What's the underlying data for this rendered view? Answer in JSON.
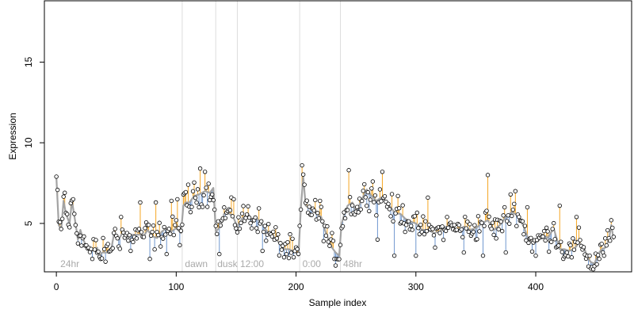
{
  "chart_data": {
    "type": "scatter",
    "xlabel": "Sample index",
    "ylabel": "Expression",
    "xlim": [
      -10,
      480
    ],
    "ylim": [
      2.0,
      18.8
    ],
    "xticks": [
      0,
      100,
      200,
      300,
      400
    ],
    "yticks": [
      5,
      10,
      15
    ],
    "grid": false,
    "legend": "none",
    "colors": {
      "above_fit": "#f5a623",
      "below_fit": "#6f97cf",
      "fit": "#a3a3a3",
      "divider": "#dddddd",
      "segment_label": "#aaaaaa"
    },
    "segments": [
      {
        "label": "24hr",
        "x": 2
      },
      {
        "label": "dawn",
        "x": 106
      },
      {
        "label": "dusk",
        "x": 133
      },
      {
        "label": "12:00",
        "x": 152
      },
      {
        "label": "0:00",
        "x": 204
      },
      {
        "label": "48hr",
        "x": 238
      }
    ],
    "dividers": [
      105,
      133,
      151,
      203,
      237
    ],
    "anchors": [
      [
        0,
        7.9
      ],
      [
        2,
        4.9
      ],
      [
        4,
        4.6
      ],
      [
        6,
        6.4
      ],
      [
        8,
        5.6
      ],
      [
        11,
        5.0
      ],
      [
        13,
        6.4
      ],
      [
        16,
        5.0
      ],
      [
        18,
        4.0
      ],
      [
        20,
        4.6
      ],
      [
        23,
        3.9
      ],
      [
        26,
        3.5
      ],
      [
        28,
        3.2
      ],
      [
        31,
        3.4
      ],
      [
        34,
        3.5
      ],
      [
        36,
        3.0
      ],
      [
        38,
        3.2
      ],
      [
        42,
        3.2
      ],
      [
        46,
        3.5
      ],
      [
        48,
        4.3
      ],
      [
        52,
        4.0
      ],
      [
        55,
        4.4
      ],
      [
        60,
        4.1
      ],
      [
        63,
        4.3
      ],
      [
        66,
        4.3
      ],
      [
        70,
        4.3
      ],
      [
        73,
        4.2
      ],
      [
        76,
        4.6
      ],
      [
        80,
        4.2
      ],
      [
        84,
        4.1
      ],
      [
        88,
        4.5
      ],
      [
        92,
        4.7
      ],
      [
        96,
        4.5
      ],
      [
        100,
        4.7
      ],
      [
        104,
        4.4
      ],
      [
        106,
        6.1
      ],
      [
        108,
        6.3
      ],
      [
        111,
        6.3
      ],
      [
        115,
        6.7
      ],
      [
        119,
        6.8
      ],
      [
        124,
        7.0
      ],
      [
        128,
        6.9
      ],
      [
        131,
        7.2
      ],
      [
        133,
        4.5
      ],
      [
        137,
        4.8
      ],
      [
        140,
        5.6
      ],
      [
        144,
        5.6
      ],
      [
        147,
        5.5
      ],
      [
        151,
        4.8
      ],
      [
        155,
        5.3
      ],
      [
        158,
        5.5
      ],
      [
        160,
        5.6
      ],
      [
        163,
        5.2
      ],
      [
        166,
        5.4
      ],
      [
        170,
        5.1
      ],
      [
        174,
        4.7
      ],
      [
        178,
        4.3
      ],
      [
        182,
        4.1
      ],
      [
        186,
        3.8
      ],
      [
        190,
        3.4
      ],
      [
        194,
        3.4
      ],
      [
        197,
        3.3
      ],
      [
        200,
        3.2
      ],
      [
        202,
        3.0
      ],
      [
        204,
        5.9
      ],
      [
        206,
        7.9
      ],
      [
        208,
        6.1
      ],
      [
        212,
        5.9
      ],
      [
        217,
        5.6
      ],
      [
        221,
        5.4
      ],
      [
        224,
        4.6
      ],
      [
        227,
        4.0
      ],
      [
        230,
        3.5
      ],
      [
        233,
        3.2
      ],
      [
        236,
        3.0
      ],
      [
        238,
        5.0
      ],
      [
        240,
        5.5
      ],
      [
        243,
        6.1
      ],
      [
        247,
        6.3
      ],
      [
        250,
        5.7
      ],
      [
        255,
        6.5
      ],
      [
        259,
        7.1
      ],
      [
        263,
        6.7
      ],
      [
        267,
        6.4
      ],
      [
        271,
        6.6
      ],
      [
        275,
        6.4
      ],
      [
        279,
        6.0
      ],
      [
        283,
        5.6
      ],
      [
        287,
        5.6
      ],
      [
        291,
        5.3
      ],
      [
        296,
        5.1
      ],
      [
        300,
        5.0
      ],
      [
        305,
        4.6
      ],
      [
        310,
        4.6
      ],
      [
        315,
        4.4
      ],
      [
        320,
        4.5
      ],
      [
        325,
        4.8
      ],
      [
        330,
        4.8
      ],
      [
        335,
        4.6
      ],
      [
        340,
        4.8
      ],
      [
        345,
        4.6
      ],
      [
        350,
        4.7
      ],
      [
        355,
        5.0
      ],
      [
        360,
        5.2
      ],
      [
        365,
        4.6
      ],
      [
        370,
        4.9
      ],
      [
        375,
        5.4
      ],
      [
        380,
        5.7
      ],
      [
        385,
        5.5
      ],
      [
        390,
        4.8
      ],
      [
        394,
        4.0
      ],
      [
        398,
        3.8
      ],
      [
        402,
        3.9
      ],
      [
        406,
        4.3
      ],
      [
        410,
        4.1
      ],
      [
        415,
        4.7
      ],
      [
        420,
        3.4
      ],
      [
        424,
        3.4
      ],
      [
        428,
        3.3
      ],
      [
        432,
        3.4
      ],
      [
        436,
        3.8
      ],
      [
        440,
        3.6
      ],
      [
        443,
        2.9
      ],
      [
        446,
        2.6
      ],
      [
        449,
        2.5
      ],
      [
        452,
        3.1
      ],
      [
        455,
        3.4
      ],
      [
        458,
        3.5
      ],
      [
        461,
        4.0
      ],
      [
        463,
        4.9
      ],
      [
        465,
        4.0
      ]
    ],
    "extremes": [
      [
        0,
        7.9
      ],
      [
        7,
        6.9
      ],
      [
        14,
        6.5
      ],
      [
        54,
        5.4
      ],
      [
        70,
        6.3
      ],
      [
        83,
        6.3
      ],
      [
        96,
        6.4
      ],
      [
        101,
        6.5
      ],
      [
        110,
        7.4
      ],
      [
        120,
        8.4
      ],
      [
        124,
        8.2
      ],
      [
        148,
        6.5
      ],
      [
        205,
        8.6
      ],
      [
        207,
        7.4
      ],
      [
        220,
        6.4
      ],
      [
        244,
        8.3
      ],
      [
        264,
        7.6
      ],
      [
        272,
        8.2
      ],
      [
        285,
        6.7
      ],
      [
        310,
        6.6
      ],
      [
        360,
        8.0
      ],
      [
        379,
        6.8
      ],
      [
        383,
        7.0
      ],
      [
        393,
        6.0
      ],
      [
        420,
        6.1
      ],
      [
        434,
        5.4
      ],
      [
        463,
        5.2
      ],
      [
        30,
        2.8
      ],
      [
        37,
        2.8
      ],
      [
        62,
        3.3
      ],
      [
        78,
        2.8
      ],
      [
        92,
        3.1
      ],
      [
        112,
        5.7
      ],
      [
        136,
        3.1
      ],
      [
        172,
        3.3
      ],
      [
        190,
        2.9
      ],
      [
        198,
        2.9
      ],
      [
        232,
        2.8
      ],
      [
        268,
        4.0
      ],
      [
        282,
        3.0
      ],
      [
        300,
        3.0
      ],
      [
        340,
        3.2
      ],
      [
        356,
        3.0
      ],
      [
        375,
        3.2
      ],
      [
        400,
        3.0
      ],
      [
        447,
        2.3
      ],
      [
        457,
        3.0
      ]
    ]
  }
}
